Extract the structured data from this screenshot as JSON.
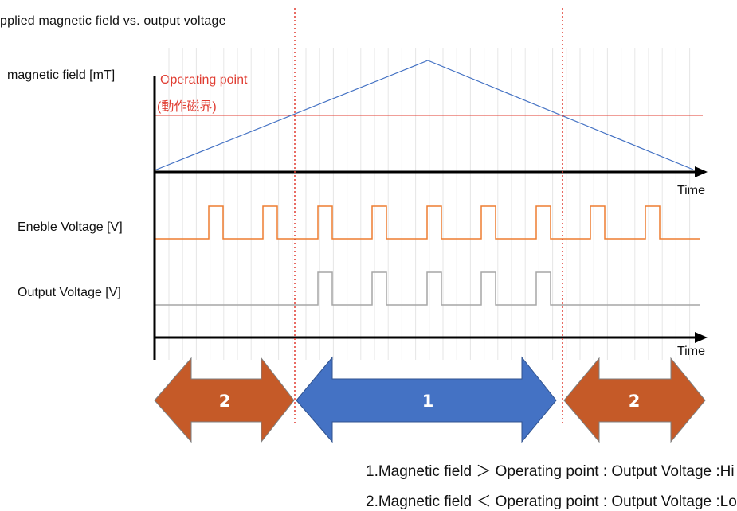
{
  "title": "pplied  magnetic  field  vs.  output  voltage",
  "labels": {
    "magnetic_field": "magnetic field [mT]",
    "operating_point": "Operating point",
    "operating_point_jp": "(動作磁界)",
    "enable_voltage": "Eneble Voltage [V]",
    "output_voltage": "Output Voltage [V]",
    "time_axis_1": "Time",
    "time_axis_2": "Time"
  },
  "regions": [
    {
      "number": "2",
      "color": "#c55a28"
    },
    {
      "number": "1",
      "color": "#4472c4"
    },
    {
      "number": "2",
      "color": "#c55a28"
    }
  ],
  "notes": [
    "1.Magnetic field ＞ Operating point : Output Voltage :Hi",
    "2.Magnetic field ＜ Operating point : Output Voltage :Lo"
  ],
  "colors": {
    "field_line": "#4472c4",
    "operating_line": "#e03c31",
    "enable_signal": "#ed7d31",
    "output_signal": "#a6a6a6",
    "grid": "#e6e6e6",
    "axis": "#000000"
  }
}
